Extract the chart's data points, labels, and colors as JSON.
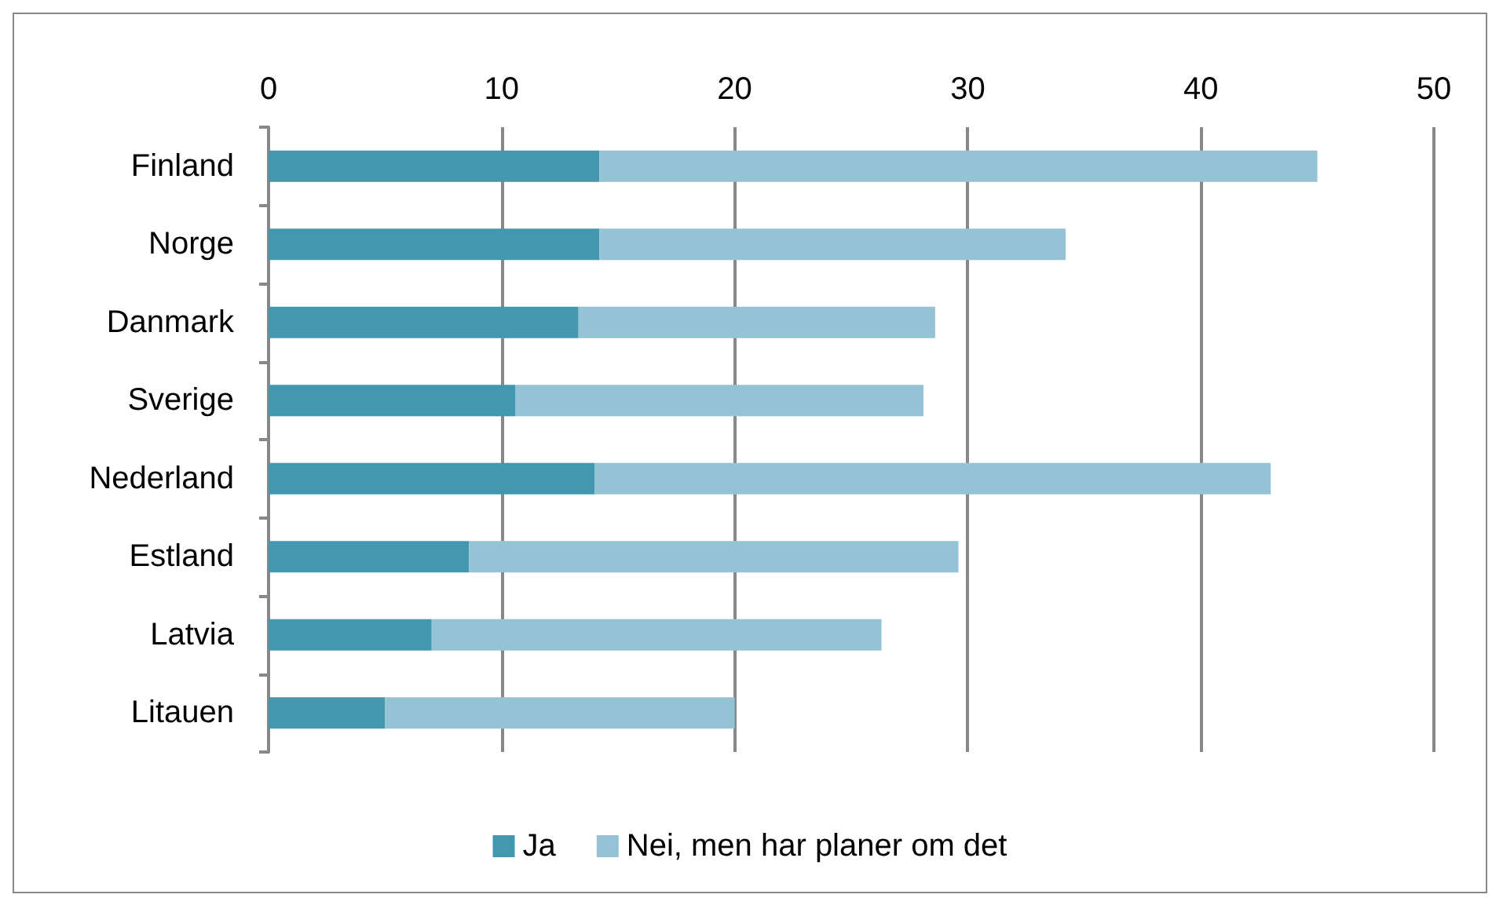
{
  "chart_data": {
    "type": "bar",
    "orientation": "horizontal",
    "stacked": true,
    "categories": [
      "Finland",
      "Norge",
      "Danmark",
      "Sverige",
      "Nederland",
      "Estland",
      "Latvia",
      "Litauen"
    ],
    "series": [
      {
        "name": "Ja",
        "color": "#4398b0",
        "values": [
          14.2,
          14.2,
          13.3,
          10.6,
          14.0,
          8.6,
          7.0,
          5.0
        ]
      },
      {
        "name": "Nei, men har planer om det",
        "color": "#93c3d5",
        "values": [
          30.8,
          20.0,
          15.3,
          17.5,
          29.0,
          21.0,
          19.3,
          15.0
        ]
      }
    ],
    "xlim": [
      0,
      50
    ],
    "xticks": [
      0,
      10,
      20,
      30,
      40,
      50
    ],
    "grid": "x",
    "legend": "bottom"
  }
}
